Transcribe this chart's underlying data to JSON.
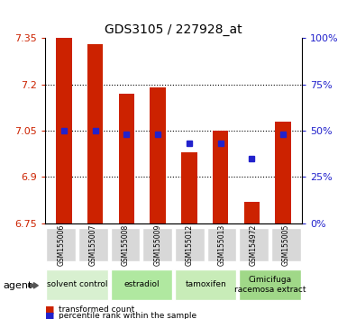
{
  "title": "GDS3105 / 227928_at",
  "samples": [
    "GSM155006",
    "GSM155007",
    "GSM155008",
    "GSM155009",
    "GSM155012",
    "GSM155013",
    "GSM154972",
    "GSM155005"
  ],
  "red_values": [
    7.35,
    7.33,
    7.17,
    7.19,
    6.98,
    7.05,
    6.82,
    7.08
  ],
  "blue_values": [
    7.05,
    7.05,
    7.04,
    7.04,
    7.01,
    7.01,
    6.96,
    7.04
  ],
  "y_min": 6.75,
  "y_max": 7.35,
  "y_ticks": [
    6.75,
    6.9,
    7.05,
    7.2,
    7.35
  ],
  "y2_ticks_pct": [
    0,
    25,
    50,
    75,
    100
  ],
  "groups": [
    {
      "label": "solvent control",
      "start": 0,
      "end": 2,
      "color": "#d8f0d0"
    },
    {
      "label": "estradiol",
      "start": 2,
      "end": 4,
      "color": "#b0e8a0"
    },
    {
      "label": "tamoxifen",
      "start": 4,
      "end": 6,
      "color": "#c8ecb8"
    },
    {
      "label": "Cimicifuga\nracemosa extract",
      "start": 6,
      "end": 8,
      "color": "#a0d888"
    }
  ],
  "bar_width": 0.5,
  "red_color": "#cc2200",
  "blue_color": "#2222cc",
  "left_color": "#cc2200",
  "right_color": "#2222cc",
  "grid_dotted_at": [
    6.9,
    7.05,
    7.2
  ]
}
